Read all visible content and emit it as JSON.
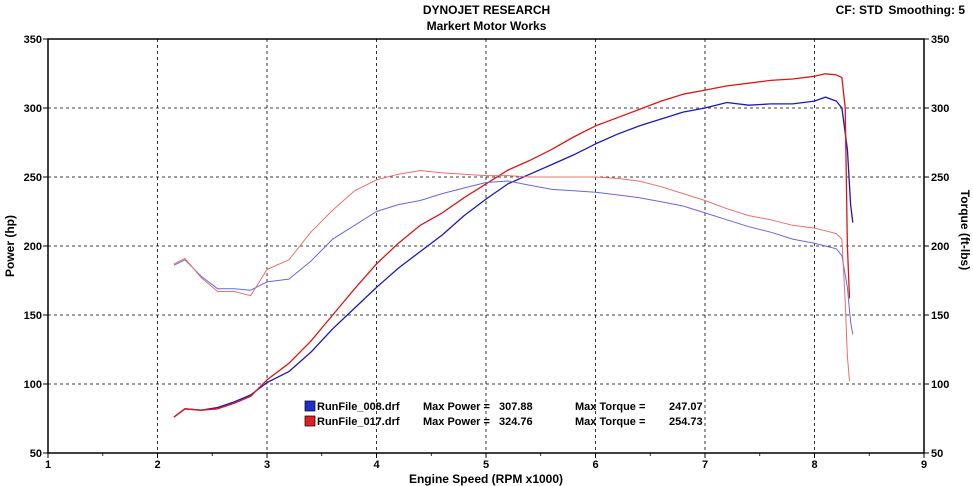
{
  "header": {
    "title": "DYNOJET RESEARCH",
    "subtitle": "Markert Motor Works",
    "cf_label": "CF: STD",
    "smoothing_label": "Smoothing: 5"
  },
  "chart_data": {
    "type": "line",
    "xlabel": "Engine Speed (RPM x1000)",
    "ylabel": "Power (hp)",
    "y2label": "Torque (ft-lbs)",
    "xlim": [
      1,
      9
    ],
    "ylim": [
      50,
      350
    ],
    "y2lim": [
      50,
      350
    ],
    "xticks": [
      1,
      2,
      3,
      4,
      5,
      6,
      7,
      8,
      9
    ],
    "yticks": [
      50,
      100,
      150,
      200,
      250,
      300,
      350
    ],
    "grid": true,
    "colors": {
      "run008": "#1a1ab8",
      "run017": "#d81818"
    },
    "legend": [
      {
        "color": "#2030d0",
        "file": "RunFile_008.drf",
        "max_power_label": "Max Power =",
        "max_power": "307.88",
        "max_torque_label": "Max Torque =",
        "max_torque": "247.07"
      },
      {
        "color": "#e02020",
        "file": "RunFile_017.drf",
        "max_power_label": "Max Power =",
        "max_power": "324.76",
        "max_torque_label": "Max Torque =",
        "max_torque": "254.73"
      }
    ],
    "series": [
      {
        "id": "run008-power",
        "color": "#1a1ab8",
        "width": 1.3,
        "x": [
          2.15,
          2.25,
          2.4,
          2.55,
          2.7,
          2.85,
          3.0,
          3.2,
          3.4,
          3.6,
          3.8,
          4.0,
          4.2,
          4.4,
          4.6,
          4.8,
          5.0,
          5.2,
          5.4,
          5.6,
          5.8,
          6.0,
          6.2,
          6.4,
          6.6,
          6.8,
          7.0,
          7.2,
          7.4,
          7.6,
          7.8,
          8.0,
          8.1,
          8.2,
          8.25,
          8.3,
          8.33,
          8.35
        ],
        "y": [
          76,
          82,
          81,
          83,
          87,
          92,
          101,
          109,
          123,
          140,
          155,
          170,
          184,
          196,
          208,
          222,
          234,
          245,
          252,
          259,
          266,
          274,
          281,
          287,
          292,
          297,
          300,
          304,
          302,
          303,
          303,
          305,
          307.88,
          305,
          300,
          270,
          230,
          217
        ]
      },
      {
        "id": "run017-power",
        "color": "#d81818",
        "width": 1.3,
        "x": [
          2.15,
          2.25,
          2.4,
          2.55,
          2.7,
          2.85,
          3.0,
          3.2,
          3.4,
          3.6,
          3.8,
          4.0,
          4.2,
          4.4,
          4.6,
          4.8,
          5.0,
          5.2,
          5.4,
          5.6,
          5.8,
          6.0,
          6.2,
          6.4,
          6.6,
          6.8,
          7.0,
          7.2,
          7.4,
          7.6,
          7.8,
          8.0,
          8.1,
          8.2,
          8.25,
          8.28,
          8.3,
          8.32
        ],
        "y": [
          76,
          82,
          81,
          82,
          86,
          91,
          103,
          115,
          131,
          150,
          169,
          187,
          202,
          215,
          224,
          235,
          245,
          255,
          262,
          270,
          279,
          287,
          293,
          299,
          305,
          310,
          313,
          316,
          318,
          320,
          321,
          323,
          324.76,
          324,
          322,
          300,
          200,
          162
        ]
      },
      {
        "id": "run008-torque",
        "color": "#6868d8",
        "width": 1,
        "x": [
          2.15,
          2.25,
          2.4,
          2.55,
          2.7,
          2.85,
          3.0,
          3.2,
          3.4,
          3.6,
          3.8,
          4.0,
          4.2,
          4.4,
          4.6,
          4.8,
          5.0,
          5.2,
          5.4,
          5.6,
          5.8,
          6.0,
          6.2,
          6.4,
          6.6,
          6.8,
          7.0,
          7.2,
          7.4,
          7.6,
          7.8,
          8.0,
          8.1,
          8.2,
          8.25,
          8.3,
          8.33,
          8.35
        ],
        "y": [
          186,
          190,
          178,
          169,
          169,
          168,
          174,
          176,
          189,
          205,
          215,
          225,
          230,
          233,
          238,
          242,
          246,
          247.07,
          244,
          241,
          240,
          239,
          237,
          235,
          232,
          229,
          224,
          219,
          214,
          210,
          205,
          202,
          200,
          198,
          193,
          170,
          145,
          136
        ]
      },
      {
        "id": "run017-torque",
        "color": "#e87070",
        "width": 1,
        "x": [
          2.15,
          2.25,
          2.4,
          2.55,
          2.7,
          2.85,
          3.0,
          3.2,
          3.4,
          3.6,
          3.8,
          4.0,
          4.2,
          4.4,
          4.6,
          4.8,
          5.0,
          5.2,
          5.4,
          5.6,
          5.8,
          6.0,
          6.2,
          6.4,
          6.6,
          6.8,
          7.0,
          7.2,
          7.4,
          7.6,
          7.8,
          8.0,
          8.1,
          8.2,
          8.25,
          8.28,
          8.3,
          8.32
        ],
        "y": [
          187,
          191,
          177,
          167,
          167,
          164,
          183,
          190,
          210,
          226,
          240,
          248,
          252,
          254.73,
          253,
          252,
          251,
          251,
          250,
          250,
          250,
          250,
          249,
          247,
          243,
          238,
          233,
          227,
          222,
          219,
          215,
          213,
          211,
          209,
          205,
          160,
          120,
          102
        ]
      }
    ]
  }
}
